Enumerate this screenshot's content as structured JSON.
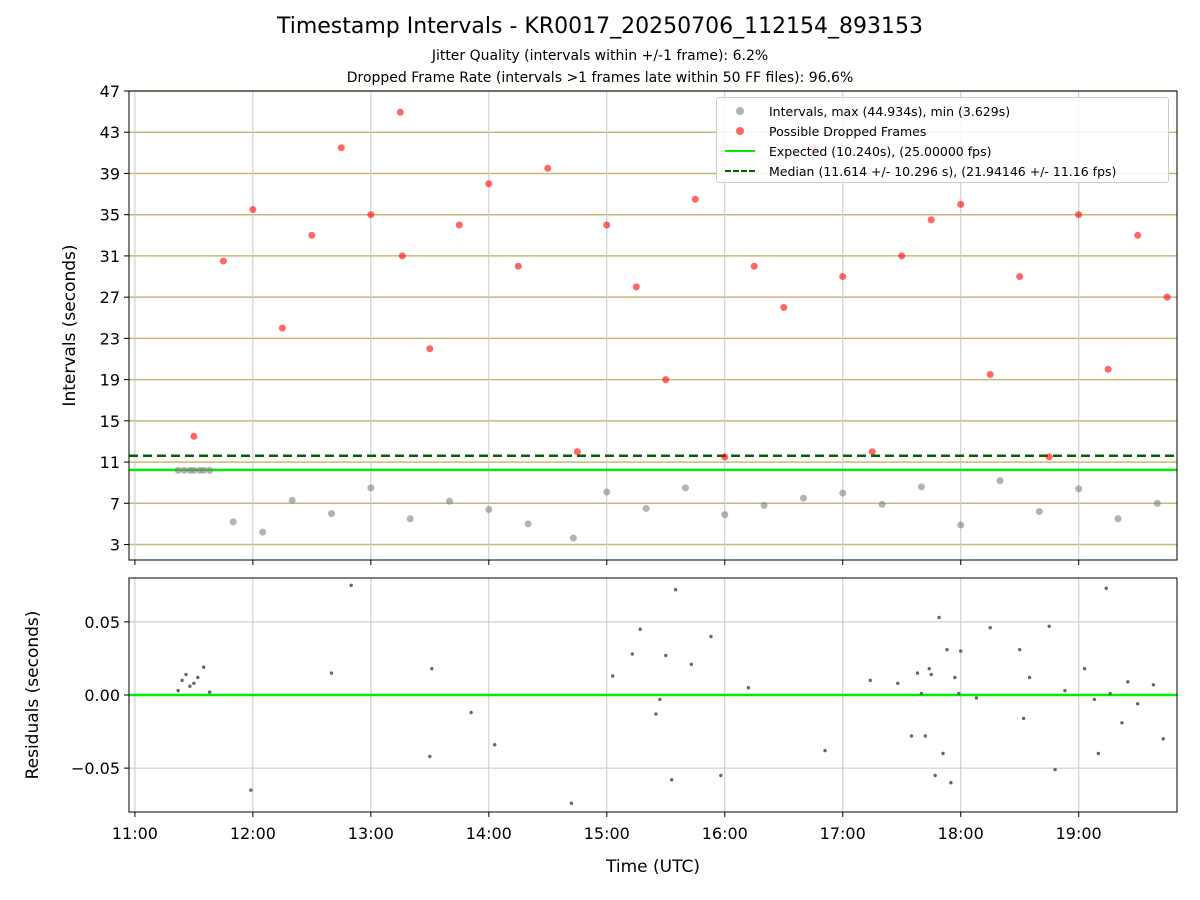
{
  "title": "Timestamp Intervals - KR0017_20250706_112154_893153",
  "subtitle_lines": [
    "Jitter Quality (intervals within +/-1 frame): 6.2%",
    "Dropped Frame Rate (intervals >1 frames late within 50 FF files): 96.6%"
  ],
  "colors": {
    "normal": "#808080",
    "dropped": "#ff0000",
    "expected": "#00ee00",
    "median": "#006400",
    "gridline": "#c8b878"
  },
  "chart_data": [
    {
      "type": "scatter",
      "ylabel": "Intervals (seconds)",
      "xlim": [
        "10:57",
        "19:50"
      ],
      "ylim": [
        1.5,
        47
      ],
      "yticks": [
        3,
        7,
        11,
        15,
        19,
        23,
        27,
        31,
        35,
        39,
        43,
        47
      ],
      "grid": true,
      "legend_position": "top-right",
      "legend": [
        "Intervals, max (44.934s), min (3.629s)",
        "Possible Dropped Frames",
        "Expected (10.240s), (25.00000 fps)",
        "Median (11.614 +/- 10.296 s), (21.94146 +/- 11.16 fps)"
      ],
      "expected_line": 10.24,
      "median_line": 11.614,
      "max_interval": 44.934,
      "min_interval": 3.629,
      "series": [
        {
          "name": "Intervals, max (44.934s), min (3.629s)",
          "x": [
            "11:22",
            "11:25",
            "11:28",
            "11:30",
            "11:33",
            "11:35",
            "11:38",
            "11:50",
            "12:05",
            "12:20",
            "12:40",
            "13:00",
            "13:20",
            "13:40",
            "14:00",
            "14:20",
            "14:43",
            "15:00",
            "15:20",
            "15:40",
            "16:00",
            "16:20",
            "16:40",
            "17:00",
            "17:20",
            "17:40",
            "18:00",
            "18:20",
            "18:40",
            "19:00",
            "19:20",
            "19:40"
          ],
          "y": [
            10.2,
            10.2,
            10.2,
            10.2,
            10.2,
            10.2,
            10.2,
            5.2,
            4.2,
            7.3,
            6.0,
            8.5,
            5.5,
            7.2,
            6.4,
            5.0,
            3.63,
            8.1,
            6.5,
            8.5,
            5.9,
            6.8,
            7.5,
            8.0,
            6.9,
            8.6,
            4.9,
            9.2,
            6.2,
            8.4,
            5.5,
            7.0
          ]
        },
        {
          "name": "Possible Dropped Frames",
          "x": [
            "11:30",
            "11:45",
            "12:00",
            "12:15",
            "12:30",
            "12:45",
            "13:00",
            "13:15",
            "13:16",
            "13:30",
            "13:45",
            "14:00",
            "14:15",
            "14:30",
            "14:45",
            "15:00",
            "15:15",
            "15:30",
            "15:45",
            "16:00",
            "16:15",
            "16:30",
            "16:45",
            "17:00",
            "17:15",
            "17:30",
            "17:45",
            "18:00",
            "18:15",
            "18:30",
            "18:45",
            "19:00",
            "19:15",
            "19:30",
            "19:45"
          ],
          "y": [
            13.5,
            30.5,
            35.5,
            24.0,
            33.0,
            41.5,
            35.0,
            44.934,
            31.0,
            22.0,
            34.0,
            38.0,
            30.0,
            39.5,
            12.0,
            34.0,
            28.0,
            19.0,
            36.5,
            11.5,
            30.0,
            26.0,
            41.5,
            29.0,
            12.0,
            31.0,
            34.5,
            36.0,
            19.5,
            29.0,
            11.5,
            35.0,
            20.0,
            33.0,
            27.0
          ]
        }
      ]
    },
    {
      "type": "scatter",
      "xlabel": "Time (UTC)",
      "ylabel": "Residuals (seconds)",
      "xlim": [
        "10:57",
        "19:50"
      ],
      "ylim": [
        -0.08,
        0.08
      ],
      "xticks": [
        "11:00",
        "12:00",
        "13:00",
        "14:00",
        "15:00",
        "16:00",
        "17:00",
        "18:00",
        "19:00"
      ],
      "yticks": [
        "−0.05",
        "0.00",
        "0.05"
      ],
      "ytick_values": [
        -0.05,
        0.0,
        0.05
      ],
      "grid": true,
      "zero_line": 0.0,
      "series": [
        {
          "name": "",
          "x": [
            "11:22",
            "11:24",
            "11:26",
            "11:28",
            "11:30",
            "11:32",
            "11:35",
            "11:38",
            "11:59",
            "12:40",
            "12:50",
            "13:30",
            "13:31",
            "13:51",
            "14:03",
            "14:42",
            "15:03",
            "15:13",
            "15:17",
            "15:25",
            "15:27",
            "15:30",
            "15:33",
            "15:35",
            "15:43",
            "15:53",
            "15:58",
            "16:12",
            "16:51",
            "17:14",
            "17:28",
            "17:35",
            "17:38",
            "17:40",
            "17:42",
            "17:44",
            "17:45",
            "17:47",
            "17:49",
            "17:51",
            "17:53",
            "17:55",
            "17:57",
            "17:59",
            "18:00",
            "18:08",
            "18:15",
            "18:30",
            "18:32",
            "18:35",
            "18:45",
            "18:48",
            "18:53",
            "19:03",
            "19:08",
            "19:10",
            "19:14",
            "19:16",
            "19:22",
            "19:25",
            "19:30",
            "19:38",
            "19:43"
          ],
          "y": [
            0.003,
            0.01,
            0.014,
            0.006,
            0.008,
            0.012,
            0.019,
            0.002,
            -0.065,
            0.015,
            0.075,
            -0.042,
            0.018,
            -0.012,
            -0.034,
            -0.074,
            0.013,
            0.028,
            0.045,
            -0.013,
            -0.003,
            0.027,
            -0.058,
            0.072,
            0.021,
            0.04,
            -0.055,
            0.005,
            -0.038,
            0.01,
            0.008,
            -0.028,
            0.015,
            0.001,
            -0.028,
            0.018,
            0.014,
            -0.055,
            0.053,
            -0.04,
            0.031,
            -0.06,
            0.012,
            0.001,
            0.03,
            -0.002,
            0.046,
            0.031,
            -0.016,
            0.012,
            0.047,
            -0.051,
            0.003,
            0.018,
            -0.003,
            -0.04,
            0.073,
            0.001,
            -0.019,
            0.009,
            -0.006,
            0.007,
            -0.03
          ]
        }
      ]
    }
  ]
}
